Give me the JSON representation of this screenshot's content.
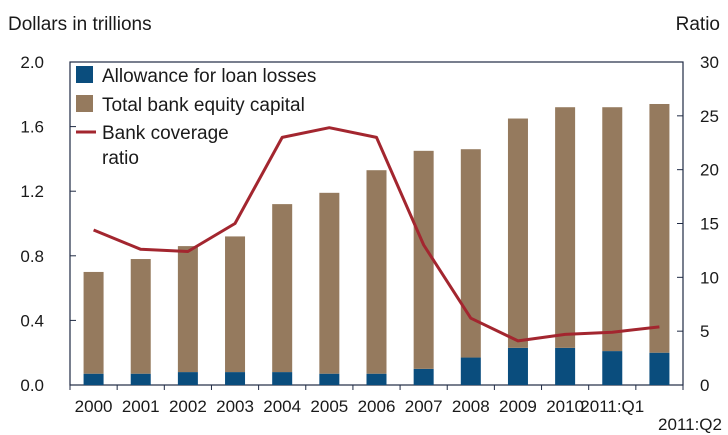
{
  "chart_data": {
    "type": "bar",
    "left_axis_label": "Dollars in trillions",
    "right_axis_label": "Ratio",
    "categories": [
      "2000",
      "2001",
      "2002",
      "2003",
      "2004",
      "2005",
      "2006",
      "2007",
      "2008",
      "2009",
      "2010",
      "2011:Q1",
      "2011:Q2"
    ],
    "left_ylim": [
      0,
      2.0
    ],
    "left_ticks": [
      "0.0",
      "0.4",
      "0.8",
      "1.2",
      "1.6",
      "2.0"
    ],
    "right_ylim": [
      0,
      30
    ],
    "right_ticks": [
      "0",
      "5",
      "10",
      "15",
      "20",
      "25",
      "30"
    ],
    "grid": false,
    "legend_position": "top-left",
    "series": [
      {
        "name": "Allowance for loan losses",
        "kind": "stacked-bar",
        "axis": "left",
        "color": "#0a4d7d",
        "values": [
          0.07,
          0.07,
          0.08,
          0.08,
          0.08,
          0.07,
          0.07,
          0.1,
          0.17,
          0.23,
          0.23,
          0.21,
          0.2
        ]
      },
      {
        "name": "Total bank equity capital",
        "kind": "stacked-bar",
        "axis": "left",
        "color": "#957a5e",
        "values": [
          0.63,
          0.71,
          0.78,
          0.84,
          1.04,
          1.12,
          1.26,
          1.35,
          1.29,
          1.42,
          1.49,
          1.51,
          1.54
        ]
      },
      {
        "name": "Bank coverage ratio",
        "kind": "line",
        "axis": "right",
        "color": "#a3262f",
        "values": [
          14.4,
          12.6,
          12.4,
          15.0,
          23.0,
          23.9,
          23.0,
          13.0,
          6.2,
          4.1,
          4.7,
          4.9,
          5.4
        ]
      }
    ]
  }
}
